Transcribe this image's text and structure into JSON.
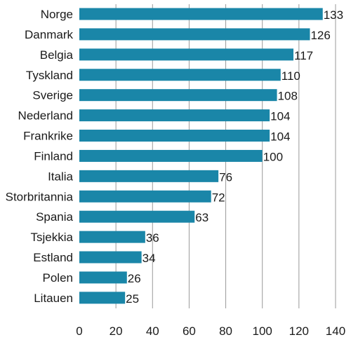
{
  "chart_data": {
    "type": "bar",
    "orientation": "horizontal",
    "categories": [
      "Norge",
      "Danmark",
      "Belgia",
      "Tyskland",
      "Sverige",
      "Nederland",
      "Frankrike",
      "Finland",
      "Italia",
      "Storbritannia",
      "Spania",
      "Tsjekkia",
      "Estland",
      "Polen",
      "Litauen"
    ],
    "values": [
      133,
      126,
      117,
      110,
      108,
      104,
      104,
      100,
      76,
      72,
      63,
      36,
      34,
      26,
      25
    ],
    "value_labels": [
      "133",
      "126",
      "117",
      "110",
      "108",
      "104",
      "104",
      "100",
      "76",
      "72",
      "63",
      "36",
      "34",
      "26",
      "25"
    ],
    "xlim": [
      0,
      140
    ],
    "x_ticks": [
      0,
      20,
      40,
      60,
      80,
      100,
      120,
      140
    ],
    "x_tick_labels": [
      "0",
      "20",
      "40",
      "60",
      "80",
      "100",
      "120",
      "140"
    ],
    "grid": "vertical",
    "legend": "none",
    "bar_color": "#1a86a8",
    "grid_color": "#9a9a9a"
  }
}
